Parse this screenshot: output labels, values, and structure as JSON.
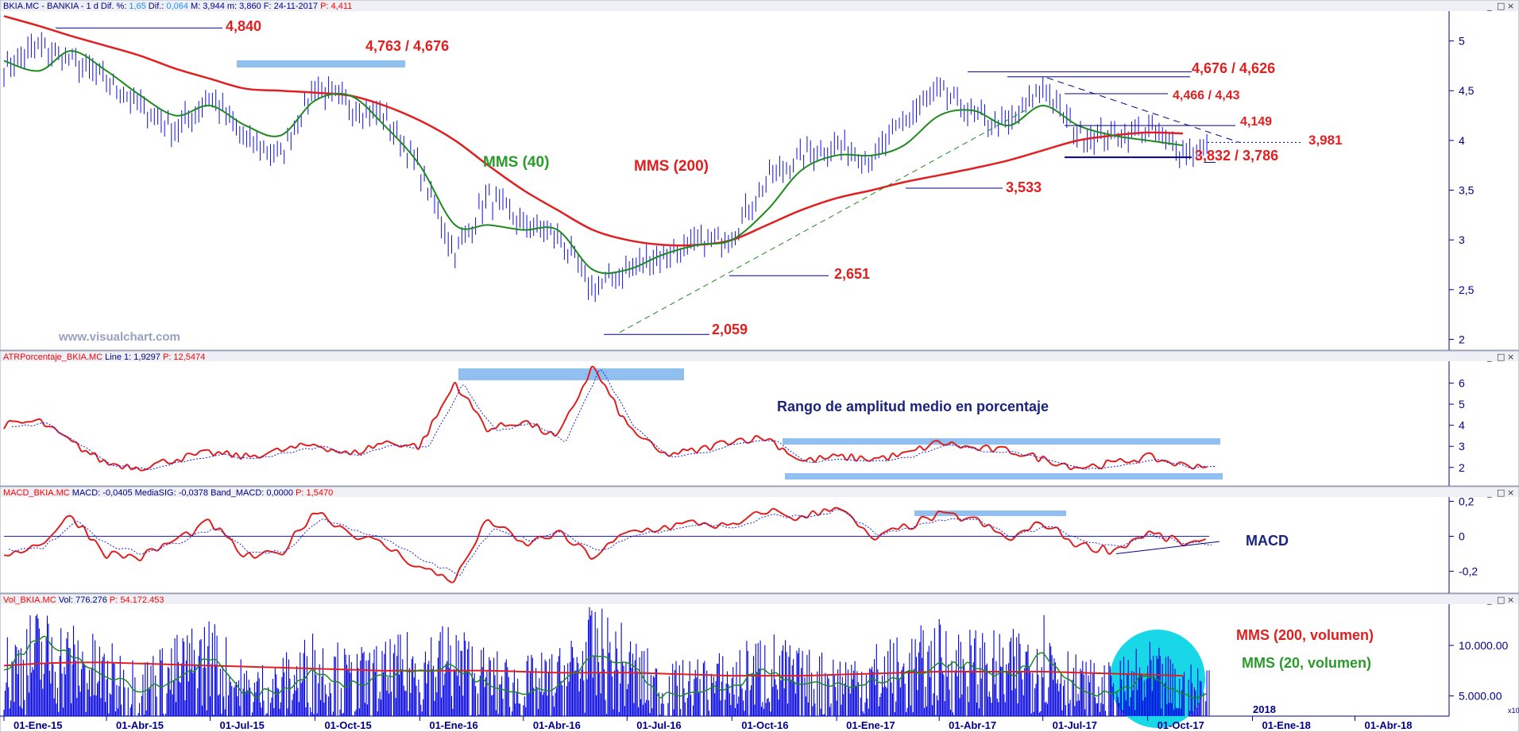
{
  "panels": {
    "price": {
      "header": [
        {
          "text": "BKIA.MC - BANKIA - 1 d",
          "color": "#00008b"
        },
        {
          "text": "Dif. %:",
          "color": "#00008b"
        },
        {
          "text": "1,65",
          "color": "#1e90ff"
        },
        {
          "text": "Dif.:",
          "color": "#00008b"
        },
        {
          "text": "0,064",
          "color": "#1e90ff"
        },
        {
          "text": "M: 3,944",
          "color": "#00008b"
        },
        {
          "text": "m: 3,860",
          "color": "#00008b"
        },
        {
          "text": "F: 24-11-2017",
          "color": "#00008b"
        },
        {
          "text": "P: 4,411",
          "color": "#ff0000"
        }
      ],
      "watermark": "www.visualchart.com",
      "y_ticks": [
        "5",
        "4,5",
        "4",
        "3,5",
        "3",
        "2,5",
        "2"
      ],
      "labels": {
        "mms40": "MMS (40)",
        "mms200": "MMS (200)",
        "l4840": "4,840",
        "l4763": "4,763 / 4,676",
        "l4676": "4,676 / 4,626",
        "l4466": "4,466 / 4,43",
        "l4149": "4,149",
        "l3981": "3,981",
        "l3832": "3,832 / 3,786",
        "l3533": "3,533",
        "l2651": "2,651",
        "l2059": "2,059"
      }
    },
    "atr": {
      "header": [
        {
          "text": "ATRPorcentaje_BKIA.MC",
          "color": "#ff0000"
        },
        {
          "text": "Line 1: 1,9297",
          "color": "#00008b"
        },
        {
          "text": "P: 12,5474",
          "color": "#ff0000"
        }
      ],
      "y_ticks": [
        "6",
        "5",
        "4",
        "3",
        "2"
      ],
      "title": "Rango de amplitud medio en porcentaje"
    },
    "macd": {
      "header": [
        {
          "text": "MACD_BKIA.MC",
          "color": "#ff0000"
        },
        {
          "text": "MACD: -0,0405",
          "color": "#00008b"
        },
        {
          "text": "MediaSIG: -0,0378",
          "color": "#00008b"
        },
        {
          "text": "Band_MACD: 0,0000",
          "color": "#00008b"
        },
        {
          "text": "P: 1,5470",
          "color": "#ff0000"
        }
      ],
      "y_ticks": [
        "0,2",
        "0",
        "-0,2"
      ],
      "title": "MACD"
    },
    "volume": {
      "header": [
        {
          "text": "Vol_BKIA.MC",
          "color": "#ff0000"
        },
        {
          "text": "Vol: 776.276",
          "color": "#00008b"
        },
        {
          "text": "P: 54.172.453",
          "color": "#ff0000"
        }
      ],
      "y_ticks": [
        "10.000.00",
        "5.000.00"
      ],
      "mms200_label": "MMS (200, volumen)",
      "mms20_label": "MMS (20, volumen)",
      "year_marker": "2018",
      "corner_label": "x10"
    }
  },
  "x_ticks": [
    "01-Ene-15",
    "01-Abr-15",
    "01-Jul-15",
    "01-Oct-15",
    "01-Ene-16",
    "01-Abr-16",
    "01-Jul-16",
    "01-Oct-16",
    "01-Ene-17",
    "01-Abr-17",
    "01-Jul-17",
    "01-Oct-17",
    "01-Ene-18",
    "01-Abr-18"
  ],
  "window_buttons": {
    "minimize": "_",
    "restore": "□",
    "close": "×"
  },
  "chart_data": [
    {
      "type": "line",
      "series": [
        {
          "name": "MMS (200)"
        },
        {
          "name": "MMS (40)"
        }
      ],
      "x": [
        "2015-01-01",
        "2015-02-01",
        "2015-03-01",
        "2015-04-01",
        "2015-05-01",
        "2015-06-01",
        "2015-07-01",
        "2015-08-01",
        "2015-09-01",
        "2015-10-01",
        "2015-11-01",
        "2015-12-01",
        "2016-01-01",
        "2016-02-01",
        "2016-03-01",
        "2016-04-01",
        "2016-05-01",
        "2016-06-01",
        "2016-07-01",
        "2016-08-01",
        "2016-09-01",
        "2016-10-01",
        "2016-11-01",
        "2016-12-01",
        "2017-01-01",
        "2017-02-01",
        "2017-03-01",
        "2017-04-01",
        "2017-05-01",
        "2017-06-01",
        "2017-07-01",
        "2017-08-01",
        "2017-09-01",
        "2017-10-01",
        "2017-11-01"
      ],
      "price": [
        4.75,
        4.95,
        4.8,
        4.6,
        4.35,
        4.1,
        4.45,
        4.0,
        3.85,
        4.55,
        4.35,
        4.25,
        3.7,
        2.85,
        3.45,
        3.15,
        3.05,
        2.5,
        2.7,
        2.85,
        2.95,
        3.05,
        3.6,
        3.85,
        3.95,
        3.8,
        4.2,
        4.5,
        4.25,
        4.15,
        4.55,
        4.05,
        4.05,
        4.1,
        3.9
      ],
      "mms200": [
        5.25,
        5.15,
        5.05,
        4.95,
        4.85,
        4.72,
        4.62,
        4.52,
        4.5,
        4.48,
        4.45,
        4.35,
        4.2,
        4.0,
        3.75,
        3.5,
        3.3,
        3.1,
        3.0,
        2.95,
        2.95,
        3.0,
        3.15,
        3.3,
        3.42,
        3.5,
        3.58,
        3.65,
        3.72,
        3.8,
        3.9,
        4.0,
        4.05,
        4.08,
        4.07
      ],
      "mms40": [
        4.8,
        4.7,
        4.9,
        4.7,
        4.45,
        4.25,
        4.35,
        4.15,
        4.05,
        4.4,
        4.45,
        4.15,
        3.75,
        3.15,
        3.15,
        3.1,
        3.1,
        2.7,
        2.7,
        2.85,
        2.95,
        3.0,
        3.3,
        3.7,
        3.85,
        3.85,
        3.95,
        4.25,
        4.3,
        4.15,
        4.35,
        4.15,
        4.05,
        4.0,
        3.95
      ],
      "ylim": [
        1.9,
        5.3
      ]
    },
    {
      "type": "line",
      "series": [
        {
          "name": "ATRPorcentaje_BKIA.MC"
        }
      ],
      "x": [
        "2015-01-01",
        "2015-02-01",
        "2015-03-01",
        "2015-04-01",
        "2015-05-01",
        "2015-06-01",
        "2015-07-01",
        "2015-08-01",
        "2015-09-01",
        "2015-10-01",
        "2015-11-01",
        "2015-12-01",
        "2016-01-01",
        "2016-02-01",
        "2016-03-01",
        "2016-04-01",
        "2016-05-01",
        "2016-06-01",
        "2016-07-01",
        "2016-08-01",
        "2016-09-01",
        "2016-10-01",
        "2016-11-01",
        "2016-12-01",
        "2017-01-01",
        "2017-02-01",
        "2017-03-01",
        "2017-04-01",
        "2017-05-01",
        "2017-06-01",
        "2017-07-01",
        "2017-08-01",
        "2017-09-01",
        "2017-10-01",
        "2017-11-01"
      ],
      "values": [
        4.0,
        4.2,
        3.2,
        2.2,
        2.0,
        2.4,
        2.7,
        2.5,
        2.8,
        3.1,
        2.6,
        3.2,
        3.0,
        6.0,
        3.8,
        4.2,
        3.4,
        6.8,
        4.0,
        2.6,
        2.8,
        3.3,
        3.4,
        2.3,
        2.5,
        2.4,
        2.6,
        3.2,
        2.9,
        2.8,
        2.4,
        2.0,
        2.2,
        2.5,
        2.1
      ],
      "ylim": [
        1.2,
        7.0
      ]
    },
    {
      "type": "line",
      "series": [
        {
          "name": "MACD"
        },
        {
          "name": "MediaSIG"
        }
      ],
      "x": [
        "2015-01-01",
        "2015-02-01",
        "2015-03-01",
        "2015-04-01",
        "2015-05-01",
        "2015-06-01",
        "2015-07-01",
        "2015-08-01",
        "2015-09-01",
        "2015-10-01",
        "2015-11-01",
        "2015-12-01",
        "2016-01-01",
        "2016-02-01",
        "2016-03-01",
        "2016-04-01",
        "2016-05-01",
        "2016-06-01",
        "2016-07-01",
        "2016-08-01",
        "2016-09-01",
        "2016-10-01",
        "2016-11-01",
        "2016-12-01",
        "2017-01-01",
        "2017-02-01",
        "2017-03-01",
        "2017-04-01",
        "2017-05-01",
        "2017-06-01",
        "2017-07-01",
        "2017-08-01",
        "2017-09-01",
        "2017-10-01",
        "2017-11-01"
      ],
      "macd": [
        -0.1,
        -0.05,
        0.12,
        -0.1,
        -0.12,
        -0.02,
        0.08,
        -0.12,
        -0.1,
        0.15,
        0.02,
        -0.05,
        -0.18,
        -0.25,
        0.1,
        -0.05,
        0.02,
        -0.12,
        0.02,
        0.05,
        0.08,
        0.05,
        0.15,
        0.1,
        0.18,
        -0.02,
        0.05,
        0.12,
        0.1,
        -0.02,
        0.08,
        -0.05,
        -0.08,
        0.02,
        -0.04
      ],
      "signal": [
        -0.08,
        -0.06,
        0.08,
        -0.06,
        -0.1,
        -0.03,
        0.05,
        -0.09,
        -0.09,
        0.1,
        0.04,
        -0.03,
        -0.14,
        -0.22,
        0.05,
        -0.02,
        0.02,
        -0.09,
        0.0,
        0.04,
        0.07,
        0.05,
        0.12,
        0.11,
        0.15,
        0.01,
        0.04,
        0.1,
        0.09,
        0.0,
        0.06,
        -0.03,
        -0.06,
        0.01,
        -0.04
      ],
      "ylim": [
        -0.32,
        0.22
      ]
    },
    {
      "type": "bar",
      "series": [
        {
          "name": "Vol_BKIA.MC"
        },
        {
          "name": "MMS (200, volumen)"
        },
        {
          "name": "MMS (20, volumen)"
        }
      ],
      "x": [
        "2015-01-01",
        "2015-02-01",
        "2015-03-01",
        "2015-04-01",
        "2015-05-01",
        "2015-06-01",
        "2015-07-01",
        "2015-08-01",
        "2015-09-01",
        "2015-10-01",
        "2015-11-01",
        "2015-12-01",
        "2016-01-01",
        "2016-02-01",
        "2016-03-01",
        "2016-04-01",
        "2016-05-01",
        "2016-06-01",
        "2016-07-01",
        "2016-08-01",
        "2016-09-01",
        "2016-10-01",
        "2016-11-01",
        "2016-12-01",
        "2017-01-01",
        "2017-02-01",
        "2017-03-01",
        "2017-04-01",
        "2017-05-01",
        "2017-06-01",
        "2017-07-01",
        "2017-08-01",
        "2017-09-01",
        "2017-10-01",
        "2017-11-01"
      ],
      "vol": [
        7500000,
        9500000,
        8500000,
        7000000,
        6000000,
        7500000,
        9000000,
        5500000,
        6000000,
        8000000,
        6500000,
        7000000,
        8000000,
        8500000,
        6500000,
        6000000,
        6500000,
        9500000,
        8000000,
        5500000,
        6000000,
        6500000,
        8000000,
        6500000,
        6500000,
        7000000,
        7500000,
        8500000,
        8000000,
        7500000,
        9500000,
        6000000,
        5500000,
        7000000,
        5500000
      ],
      "mms200": [
        8000000,
        8200000,
        8300000,
        8300000,
        8200000,
        8100000,
        8000000,
        7900000,
        7800000,
        7700000,
        7600000,
        7500000,
        7500000,
        7500000,
        7500000,
        7400000,
        7300000,
        7300000,
        7300000,
        7200000,
        7100000,
        7000000,
        7000000,
        7000000,
        7100000,
        7200000,
        7300000,
        7400000,
        7400000,
        7400000,
        7400000,
        7300000,
        7200000,
        7100000,
        7000000
      ],
      "mms20": [
        7500000,
        11000000,
        9000000,
        7000000,
        5500000,
        6500000,
        9000000,
        5000000,
        5500000,
        7500000,
        6000000,
        7000000,
        7500000,
        8000000,
        6000000,
        5500000,
        6000000,
        9000000,
        8500000,
        5000000,
        5500000,
        6000000,
        7500000,
        6000000,
        6000000,
        6500000,
        7000000,
        8000000,
        8000000,
        7000000,
        9000000,
        5500000,
        5000000,
        7000000,
        5000000
      ],
      "ylim": [
        3000000,
        14000000
      ]
    }
  ]
}
